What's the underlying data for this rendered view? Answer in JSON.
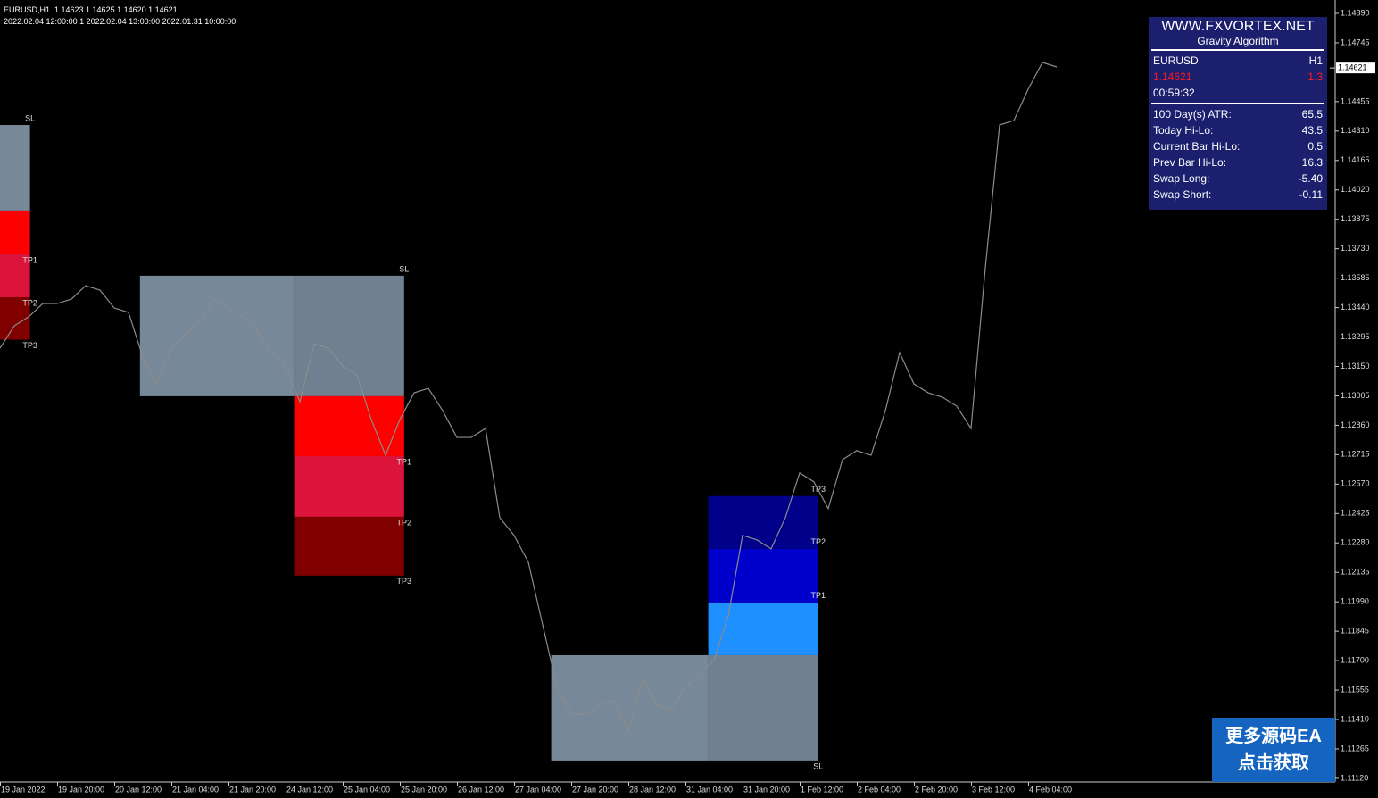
{
  "header": {
    "symbol_line": "EURUSD,H1  1.14623 1.14625 1.14620 1.14621",
    "time_line": "2022.02.04 12:00:00 1 2022.02.04 13:00:00 2022.01.31 10:00:00"
  },
  "chart_data": {
    "type": "line",
    "color": "#8c8c8c",
    "values": [
      1.1324,
      1.1335,
      1.13394,
      1.1346,
      1.1346,
      1.13482,
      1.13548,
      1.13526,
      1.13438,
      1.13416,
      1.13196,
      1.13064,
      1.1324,
      1.13306,
      1.13372,
      1.13482,
      1.13438,
      1.13394,
      1.13328,
      1.13218,
      1.13152,
      1.12976,
      1.13262,
      1.1324,
      1.13152,
      1.13108,
      1.12888,
      1.12712,
      1.12888,
      1.1302,
      1.13042,
      1.12932,
      1.128,
      1.128,
      1.12844,
      1.12405,
      1.12317,
      1.12185,
      1.11877,
      1.11569,
      1.11437,
      1.11437,
      1.11481,
      1.11503,
      1.11349,
      1.11613,
      1.11481,
      1.11459,
      1.11569,
      1.11635,
      1.11701,
      1.11921,
      1.12317,
      1.12295,
      1.12251,
      1.12405,
      1.12625,
      1.12581,
      1.12449,
      1.12691,
      1.12735,
      1.12712,
      1.12932,
      1.13218,
      1.13064,
      1.1302,
      1.12998,
      1.12954,
      1.12844,
      1.13636,
      1.1434,
      1.14362,
      1.14516,
      1.14648,
      1.14626
    ],
    "ylim": [
      1.11102,
      1.14956
    ],
    "yticks": [
      {
        "value": 1.1489,
        "label": "1.14890"
      },
      1.14745,
      1.14455,
      {
        "value": 1.1431,
        "label": "1.14310"
      },
      1.14165,
      {
        "value": 1.1402,
        "label": "1.14020"
      },
      1.13875,
      {
        "value": 1.1373,
        "label": "1.13730"
      },
      1.13585,
      {
        "value": 1.1344,
        "label": "1.13440"
      },
      1.13295,
      {
        "value": 1.1315,
        "label": "1.13150"
      },
      1.13005,
      {
        "value": 1.1286,
        "label": "1.12860"
      },
      1.12715,
      {
        "value": 1.1257,
        "label": "1.12570"
      },
      1.12425,
      {
        "value": 1.1228,
        "label": "1.12280"
      },
      1.12135,
      {
        "value": 1.1199,
        "label": "1.11990"
      },
      1.11845,
      {
        "value": 1.117,
        "label": "1.11700"
      },
      1.11555,
      {
        "value": 1.1141,
        "label": "1.11410"
      },
      1.11265,
      {
        "value": 1.1112,
        "label": "1.11120"
      }
    ],
    "x_labels": [
      "19 Jan 2022",
      "19 Jan 20:00",
      "20 Jan 12:00",
      "21 Jan 04:00",
      "21 Jan 20:00",
      "24 Jan 12:00",
      "25 Jan 04:00",
      "25 Jan 20:00",
      "26 Jan 12:00",
      "27 Jan 04:00",
      "27 Jan 20:00",
      "28 Jan 12:00",
      "31 Jan 04:00",
      "31 Jan 20:00",
      "1 Feb 12:00",
      "2 Feb 04:00",
      "2 Feb 20:00",
      "3 Feb 12:00",
      "4 Feb 04:00"
    ],
    "current_price": 1.14621,
    "zones": [
      {
        "segments": [
          {
            "start": 0,
            "end": 2.1,
            "top": 1.1434,
            "bottom": 1.13918,
            "color": "#778899"
          },
          {
            "start": 0,
            "end": 2.1,
            "top": 1.13918,
            "bottom": 1.13702,
            "color": "#ff0000"
          },
          {
            "start": 0,
            "end": 2.1,
            "top": 1.13702,
            "bottom": 1.13491,
            "color": "#dc143c"
          },
          {
            "start": 0,
            "end": 2.1,
            "top": 1.13491,
            "bottom": 1.13282,
            "color": "#800000"
          }
        ],
        "labels": [
          {
            "text": "SL",
            "price": 1.1434
          },
          {
            "text": "TP1",
            "price": 1.13702
          },
          {
            "text": "TP2",
            "price": 1.13491
          },
          {
            "text": "TP3",
            "price": 1.13282
          }
        ]
      },
      {
        "segments": [
          {
            "start": 9.8,
            "end": 20.6,
            "top": 1.13597,
            "bottom": 1.13003,
            "color": "#778899"
          },
          {
            "start": 20.6,
            "end": 28.3,
            "top": 1.13597,
            "bottom": 1.13003,
            "color": "#708090"
          },
          {
            "start": 20.6,
            "end": 28.3,
            "top": 1.13003,
            "bottom": 1.12708,
            "color": "#ff0000"
          },
          {
            "start": 20.6,
            "end": 28.3,
            "top": 1.12708,
            "bottom": 1.12409,
            "color": "#dc143c"
          },
          {
            "start": 20.6,
            "end": 28.3,
            "top": 1.12409,
            "bottom": 1.12119,
            "color": "#800000"
          }
        ],
        "labels": [
          {
            "text": "SL",
            "price": 1.13597
          },
          {
            "text": "TP1",
            "price": 1.12708
          },
          {
            "text": "TP2",
            "price": 1.12409
          },
          {
            "text": "TP3",
            "price": 1.12119
          }
        ]
      },
      {
        "segments": [
          {
            "start": 38.6,
            "end": 49.6,
            "top": 1.11727,
            "bottom": 1.11208,
            "color": "#778899"
          },
          {
            "start": 49.6,
            "end": 57.3,
            "top": 1.11727,
            "bottom": 1.11208,
            "color": "#708090"
          },
          {
            "start": 49.6,
            "end": 57.3,
            "top": 1.11987,
            "bottom": 1.11727,
            "color": "#1e90ff"
          },
          {
            "start": 49.6,
            "end": 57.3,
            "top": 1.12251,
            "bottom": 1.11987,
            "color": "#0000cd"
          },
          {
            "start": 49.6,
            "end": 57.3,
            "top": 1.12511,
            "bottom": 1.12251,
            "color": "#00008b"
          }
        ],
        "labels": [
          {
            "text": "TP3",
            "price": 1.12511
          },
          {
            "text": "TP2",
            "price": 1.12251
          },
          {
            "text": "TP1",
            "price": 1.11987
          },
          {
            "text": "SL",
            "price": 1.11208
          }
        ]
      }
    ]
  },
  "panel": {
    "title": "WWW.FXVORTEX.NET",
    "subtitle": "Gravity Algorithm",
    "symbol": "EURUSD",
    "timeframe": "H1",
    "price": "1.14621",
    "spread": "1.3",
    "countdown": "00:59:32",
    "rows": [
      [
        "100 Day(s) ATR:",
        "65.5"
      ],
      [
        "Today Hi-Lo:",
        "43.5"
      ],
      [
        "Current Bar Hi-Lo:",
        "0.5"
      ],
      [
        "Prev Bar Hi-Lo:",
        "16.3"
      ],
      [
        "Swap Long:",
        "-5.40"
      ],
      [
        "Swap Short:",
        "-0.11"
      ]
    ]
  },
  "button": {
    "line1": "更多源码EA",
    "line2": "点击获取"
  }
}
